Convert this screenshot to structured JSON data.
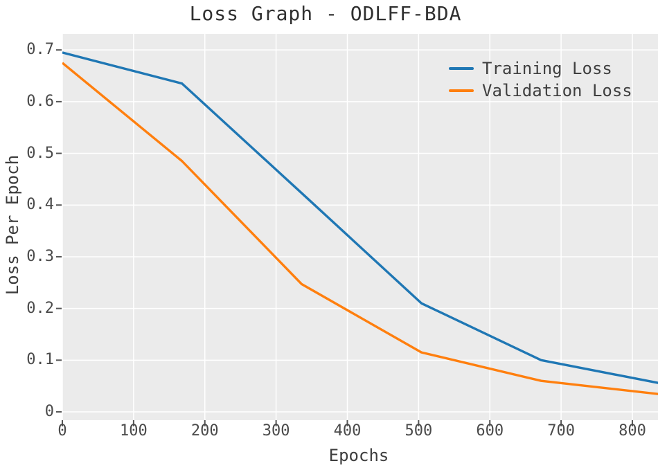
{
  "chart_data": {
    "type": "line",
    "title": "Loss Graph - ODLFF-BDA",
    "xlabel": "Epochs",
    "ylabel": "Loss Per Epoch",
    "x": [
      0,
      168,
      336,
      504,
      672,
      840
    ],
    "series": [
      {
        "name": "Training Loss",
        "color": "#1f77b4",
        "values": [
          0.695,
          0.635,
          0.423,
          0.21,
          0.1,
          0.055
        ]
      },
      {
        "name": "Validation Loss",
        "color": "#ff7f0e",
        "values": [
          0.675,
          0.485,
          0.247,
          0.115,
          0.06,
          0.034
        ]
      }
    ],
    "xlim": [
      0,
      836
    ],
    "ylim": [
      -0.008,
      0.731
    ],
    "xticks": {
      "values": [
        0,
        100,
        200,
        300,
        400,
        500,
        600,
        700,
        800
      ],
      "labels": [
        "0",
        "100",
        "200",
        "300",
        "400",
        "500",
        "600",
        "700",
        "800"
      ]
    },
    "yticks": {
      "values": [
        0,
        0.1,
        0.2,
        0.3,
        0.4,
        0.5,
        0.6,
        0.7
      ],
      "labels": [
        "0",
        "0.1",
        "0.2",
        "0.3",
        "0.4",
        "0.5",
        "0.6",
        "0.7"
      ]
    },
    "grid": true,
    "legend_position": "upper right",
    "plot_bg": "#ebebeb",
    "grid_color": "#ffffff",
    "tick_color": "#555555",
    "line_width": 3.4
  }
}
